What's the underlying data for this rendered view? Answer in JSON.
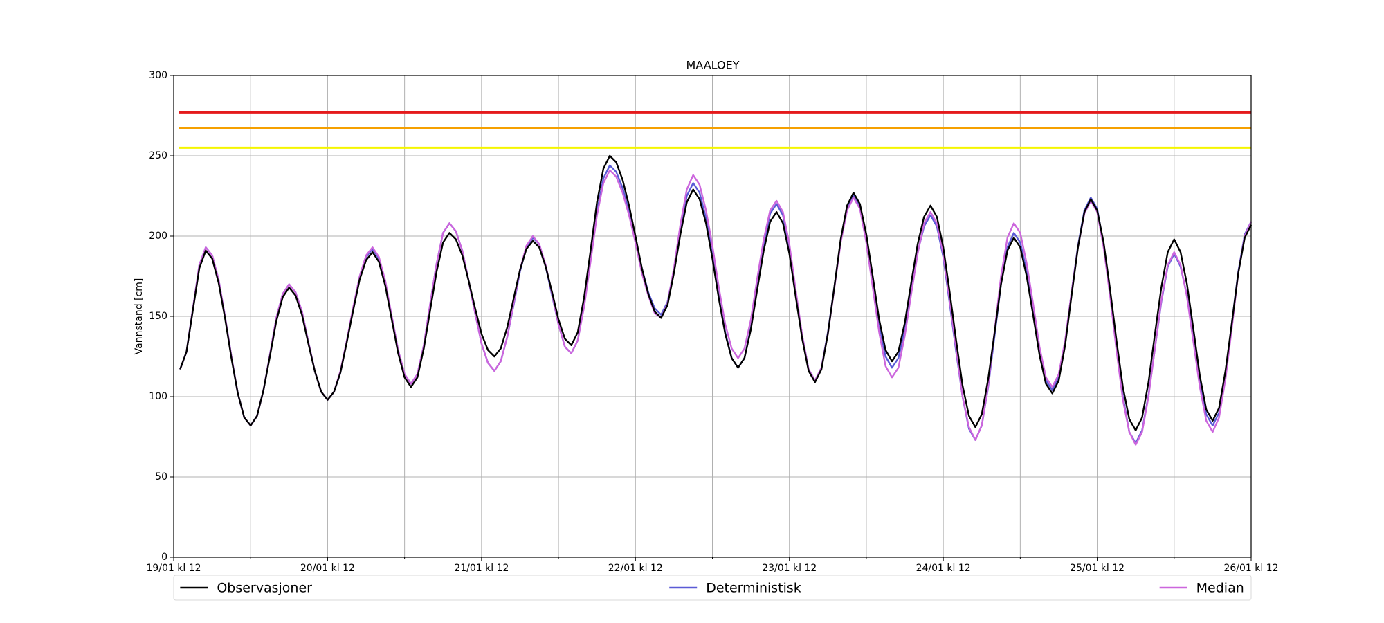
{
  "chart_data": {
    "type": "line",
    "title": "MAALOEY",
    "y_label": "Vannstand [cm]",
    "x": [
      1,
      2,
      3,
      4,
      5,
      6,
      7,
      8,
      9,
      10,
      11,
      12,
      13,
      14,
      15,
      16,
      17,
      18,
      19,
      20,
      21,
      22,
      23,
      24,
      25,
      26,
      27,
      28,
      29,
      30,
      31,
      32,
      33,
      34,
      35,
      36,
      37,
      38,
      39,
      40,
      41,
      42,
      43,
      44,
      45,
      46,
      47,
      48,
      49,
      50,
      51,
      52,
      53,
      54,
      55,
      56,
      57,
      58,
      59,
      60,
      61,
      62,
      63,
      64,
      65,
      66,
      67,
      68,
      69,
      70,
      71,
      72,
      73,
      74,
      75,
      76,
      77,
      78,
      79,
      80,
      81,
      82,
      83,
      84,
      85,
      86,
      87,
      88,
      89,
      90,
      91,
      92,
      93,
      94,
      95,
      96,
      97,
      98,
      99,
      100,
      101,
      102,
      103,
      104,
      105,
      106,
      107,
      108,
      109,
      110,
      111,
      112,
      113,
      114,
      115,
      116,
      117,
      118,
      119,
      120,
      121,
      122,
      123,
      124,
      125,
      126,
      127,
      128,
      129,
      130,
      131,
      132,
      133,
      134,
      135,
      136,
      137,
      138,
      139,
      140,
      141,
      142,
      143,
      144,
      145,
      146,
      147,
      148,
      149,
      150,
      151,
      152,
      153,
      154,
      155,
      156,
      157,
      158,
      159,
      160,
      161,
      162,
      163,
      164,
      165,
      166,
      167,
      168
    ],
    "series": [
      {
        "name": "Deterministisk",
        "color": "#5b5bd6",
        "values": [
          117,
          128,
          155,
          182,
          193,
          188,
          173,
          150,
          125,
          102,
          87,
          82,
          88,
          104,
          126,
          149,
          164,
          170,
          165,
          153,
          134,
          116,
          103,
          98,
          103,
          115,
          135,
          155,
          175,
          187,
          192,
          186,
          171,
          150,
          129,
          114,
          108,
          114,
          132,
          158,
          183,
          202,
          208,
          203,
          191,
          172,
          152,
          133,
          121,
          116,
          122,
          137,
          157,
          178,
          193,
          199,
          195,
          181,
          163,
          145,
          131,
          127,
          135,
          157,
          186,
          215,
          236,
          244,
          240,
          230,
          215,
          198,
          180,
          165,
          155,
          151,
          159,
          179,
          204,
          225,
          233,
          227,
          211,
          188,
          162,
          140,
          124,
          118,
          124,
          143,
          170,
          195,
          214,
          220,
          213,
          193,
          165,
          138,
          117,
          110,
          118,
          140,
          168,
          197,
          217,
          225,
          218,
          199,
          172,
          145,
          125,
          118,
          124,
          142,
          166,
          190,
          206,
          213,
          206,
          187,
          158,
          128,
          100,
          80,
          73,
          82,
          106,
          138,
          170,
          193,
          202,
          196,
          178,
          153,
          128,
          110,
          104,
          112,
          134,
          165,
          194,
          216,
          224,
          217,
          195,
          164,
          130,
          100,
          78,
          71,
          79,
          101,
          130,
          159,
          181,
          189,
          181,
          163,
          136,
          109,
          89,
          82,
          90,
          114,
          146,
          178,
          201,
          209
        ]
      },
      {
        "name": "Median",
        "color": "#cc66dd",
        "values": [
          117,
          128,
          155,
          182,
          193,
          188,
          173,
          150,
          125,
          102,
          87,
          82,
          88,
          104,
          126,
          149,
          164,
          170,
          165,
          153,
          134,
          116,
          103,
          98,
          103,
          116,
          135,
          156,
          175,
          188,
          193,
          187,
          172,
          150,
          129,
          114,
          108,
          114,
          132,
          158,
          183,
          202,
          208,
          203,
          191,
          172,
          152,
          133,
          121,
          116,
          122,
          137,
          158,
          179,
          194,
          200,
          195,
          182,
          164,
          145,
          131,
          127,
          135,
          156,
          184,
          213,
          233,
          241,
          237,
          227,
          213,
          196,
          177,
          163,
          152,
          149,
          158,
          180,
          207,
          229,
          238,
          232,
          216,
          194,
          168,
          145,
          130,
          124,
          130,
          148,
          174,
          198,
          216,
          222,
          215,
          195,
          166,
          138,
          117,
          110,
          118,
          139,
          167,
          196,
          216,
          224,
          217,
          196,
          168,
          140,
          119,
          112,
          118,
          138,
          164,
          189,
          208,
          215,
          208,
          189,
          160,
          130,
          100,
          81,
          73,
          82,
          107,
          141,
          175,
          199,
          208,
          202,
          183,
          158,
          131,
          112,
          106,
          114,
          135,
          165,
          193,
          214,
          222,
          215,
          193,
          163,
          129,
          98,
          78,
          70,
          78,
          100,
          130,
          160,
          182,
          190,
          182,
          162,
          134,
          106,
          85,
          78,
          87,
          111,
          143,
          177,
          200,
          209
        ]
      },
      {
        "name": "Observasjoner",
        "color": "#000000",
        "values": [
          117,
          128,
          154,
          180,
          191,
          186,
          171,
          149,
          124,
          102,
          87,
          82,
          88,
          104,
          125,
          147,
          162,
          168,
          163,
          151,
          133,
          116,
          103,
          98,
          103,
          115,
          134,
          154,
          173,
          185,
          190,
          184,
          169,
          148,
          127,
          112,
          106,
          112,
          130,
          154,
          178,
          196,
          202,
          198,
          188,
          172,
          155,
          139,
          129,
          125,
          130,
          143,
          161,
          179,
          192,
          197,
          193,
          181,
          165,
          148,
          136,
          132,
          140,
          162,
          191,
          221,
          242,
          250,
          246,
          235,
          219,
          200,
          180,
          164,
          153,
          149,
          157,
          177,
          201,
          221,
          229,
          223,
          208,
          186,
          161,
          139,
          124,
          118,
          124,
          142,
          167,
          191,
          209,
          215,
          208,
          189,
          162,
          136,
          116,
          109,
          117,
          139,
          168,
          198,
          219,
          227,
          220,
          201,
          175,
          148,
          129,
          122,
          128,
          146,
          171,
          195,
          212,
          219,
          212,
          193,
          165,
          135,
          107,
          88,
          81,
          89,
          111,
          140,
          170,
          191,
          199,
          193,
          175,
          151,
          126,
          108,
          102,
          110,
          132,
          163,
          193,
          215,
          223,
          216,
          196,
          167,
          135,
          106,
          86,
          79,
          87,
          109,
          139,
          168,
          190,
          198,
          190,
          170,
          142,
          113,
          92,
          85,
          93,
          116,
          146,
          177,
          199,
          207
        ]
      }
    ],
    "hlines": [
      {
        "value": 277,
        "color": "#e41a1c"
      },
      {
        "value": 267,
        "color": "#f5a000"
      },
      {
        "value": 255,
        "color": "#f5f500"
      }
    ],
    "xlim": [
      0,
      168
    ],
    "xticks": [
      {
        "value": 0,
        "label": "19/01 kl 12"
      },
      {
        "value": 24,
        "label": "20/01 kl 12"
      },
      {
        "value": 48,
        "label": "21/01 kl 12"
      },
      {
        "value": 72,
        "label": "22/01 kl 12"
      },
      {
        "value": 96,
        "label": "23/01 kl 12"
      },
      {
        "value": 120,
        "label": "24/01 kl 12"
      },
      {
        "value": 144,
        "label": "25/01 kl 12"
      },
      {
        "value": 168,
        "label": "26/01 kl 12"
      }
    ],
    "xminorticks": [
      12,
      36,
      60,
      84,
      108,
      132,
      156
    ],
    "ylim": [
      0,
      300
    ],
    "yticks": [
      0,
      50,
      100,
      150,
      200,
      250,
      300
    ],
    "grid": true,
    "legend": "bottom"
  }
}
